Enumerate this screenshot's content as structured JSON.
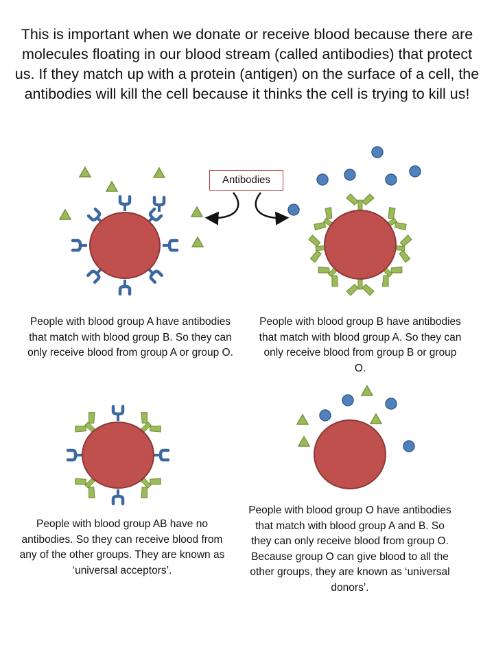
{
  "intro_text": "This is important when we donate or receive blood because there are molecules floating in our blood stream (called antibodies) that protect us. If they match up with a protein (antigen) on the surface of a cell, the antibodies will kill the cell because it thinks the cell is trying to kill us!",
  "antibodies_label": "Antibodies",
  "groups": {
    "A": "People with blood group A have antibodies that match with blood group B. So they can only receive blood from group A or group O.",
    "B": "People with blood group B have antibodies that match with blood group A. So they can only receive blood from group B or group O.",
    "AB": "People with blood group AB have no antibodies. So they can receive blood from any of the other groups. They are known as ‘universal acceptors’.",
    "O": "People with blood group O have antibodies that match with blood group A and B. So they can only receive blood from group O. Because group O can give blood to all the other groups, they are known as ‘universal donors’."
  },
  "colors": {
    "cell_fill": "#c0504d",
    "cell_stroke": "#8c3836",
    "antigen_a": "#9bbb59",
    "antigen_a_stroke": "#76923c",
    "antigen_b": "#4f81bd",
    "antigen_b_stroke": "#385d8a",
    "label_border": "#b3393b"
  },
  "icons": {
    "cell": "red-blood-cell-ellipse",
    "antigen_a": "green-triangle",
    "antigen_b": "blue-circle",
    "receptor_a": "blue-y-shaped-receptor",
    "receptor_b": "green-v-shaped-receptor",
    "arrow": "curved-arrow"
  }
}
